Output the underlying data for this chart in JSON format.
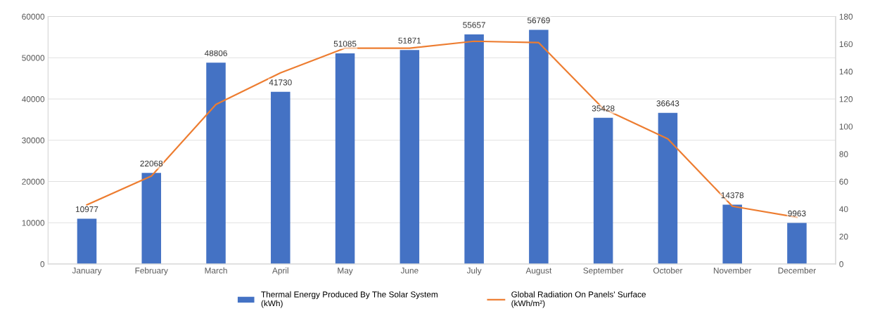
{
  "chart_data": {
    "type": "bar",
    "categories": [
      "January",
      "February",
      "March",
      "April",
      "May",
      "June",
      "July",
      "August",
      "September",
      "October",
      "November",
      "December"
    ],
    "series": [
      {
        "name": "Thermal Energy Produced By The Solar System\n(kWh)",
        "color": "#4472c4",
        "data_labels": true,
        "values": [
          10977,
          22068,
          48806,
          41730,
          51085,
          51871,
          55657,
          56769,
          35428,
          36643,
          14378,
          9963
        ]
      },
      {
        "name": "Global Radiation On Panels' Surface\n(kWh/m²)",
        "type": "line",
        "axis": "y2",
        "color": "#ed7d31",
        "marker": "none",
        "line_style": "solid",
        "values": [
          43,
          64,
          116,
          139,
          157,
          157,
          162,
          161,
          113,
          91,
          42,
          34
        ]
      }
    ],
    "ylim": [
      0,
      60000
    ],
    "yticks": [
      0,
      10000,
      20000,
      30000,
      40000,
      50000,
      60000
    ],
    "y2lim": [
      0,
      180
    ],
    "y2ticks": [
      0,
      20,
      40,
      60,
      80,
      100,
      120,
      140,
      160,
      180
    ],
    "grid": "y",
    "legend": "bottom"
  }
}
